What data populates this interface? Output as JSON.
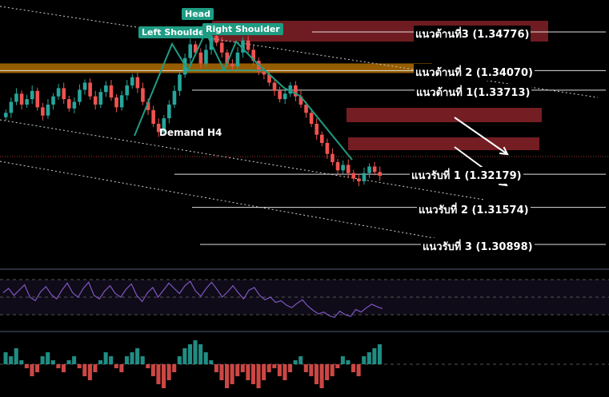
{
  "chart_data": {
    "type": "candlestick",
    "pattern": {
      "left_shoulder": "Left Shoulder",
      "head": "Head",
      "right_shoulder": "Right Shoulder",
      "demand_zone": "Demand H4"
    },
    "resistance": [
      {
        "label": "แนวต้านที่3 (1.34776)",
        "price": 1.34776
      },
      {
        "label": "แนวต้านที่ 2 (1.34070)",
        "price": 1.3407
      },
      {
        "label": "แนวต้านที่ 1(1.33713)",
        "price": 1.33713
      }
    ],
    "support": [
      {
        "label": "แนวรับที่ 1 (1.32179)",
        "price": 1.32179
      },
      {
        "label": "แนวรับที่ 2 (1.31574)",
        "price": 1.31574
      },
      {
        "label": "แนวรับที่ 3 (1.30898)",
        "price": 1.30898
      }
    ],
    "price_range": [
      1.306,
      1.352
    ],
    "closes": [
      1.333,
      1.335,
      1.3365,
      1.3345,
      1.3355,
      1.337,
      1.334,
      1.3325,
      1.3345,
      1.336,
      1.3375,
      1.3355,
      1.3338,
      1.335,
      1.3372,
      1.3385,
      1.336,
      1.3345,
      1.3368,
      1.338,
      1.3358,
      1.334,
      1.3362,
      1.338,
      1.3395,
      1.3375,
      1.335,
      1.3335,
      1.331,
      1.3295,
      1.332,
      1.3345,
      1.337,
      1.34,
      1.343,
      1.3455,
      1.344,
      1.342,
      1.3445,
      1.347,
      1.3458,
      1.344,
      1.342,
      1.3415,
      1.344,
      1.3462,
      1.3445,
      1.3425,
      1.3405,
      1.34,
      1.3385,
      1.337,
      1.3355,
      1.3365,
      1.338,
      1.336,
      1.3345,
      1.333,
      1.331,
      1.329,
      1.3275,
      1.3255,
      1.324,
      1.3225,
      1.3235,
      1.322,
      1.321,
      1.3205,
      1.322,
      1.3232,
      1.3222,
      1.3215
    ],
    "rsi": [
      55,
      60,
      52,
      58,
      64,
      50,
      46,
      56,
      62,
      53,
      48,
      58,
      66,
      55,
      50,
      60,
      67,
      52,
      48,
      57,
      63,
      54,
      50,
      59,
      65,
      52,
      45,
      55,
      61,
      50,
      58,
      66,
      60,
      54,
      63,
      68,
      57,
      51,
      60,
      67,
      59,
      50,
      56,
      63,
      55,
      48,
      58,
      61,
      52,
      47,
      50,
      44,
      46,
      41,
      38,
      43,
      47,
      40,
      35,
      31,
      33,
      29,
      27,
      34,
      30,
      28,
      36,
      33,
      38,
      42,
      39,
      37
    ],
    "macd": [
      3,
      2,
      4,
      1,
      -1,
      -3,
      -2,
      2,
      3,
      1,
      -1,
      -2,
      1,
      2,
      -1,
      -3,
      -4,
      -2,
      1,
      3,
      2,
      -1,
      -2,
      2,
      3,
      4,
      2,
      -1,
      -3,
      -5,
      -6,
      -4,
      -2,
      2,
      4,
      5,
      6,
      5,
      3,
      1,
      -2,
      -4,
      -6,
      -5,
      -3,
      -2,
      -4,
      -5,
      -6,
      -4,
      -2,
      -1,
      -3,
      -4,
      -2,
      1,
      2,
      -2,
      -3,
      -5,
      -6,
      -4,
      -3,
      -1,
      2,
      1,
      -2,
      -3,
      2,
      3,
      4,
      5
    ]
  },
  "colors": {
    "up": "#26a69a",
    "down": "#ef5350",
    "rsi": "#7e57c2",
    "resistance_zone": "#7a1f25",
    "orange_zone": "#b06d00",
    "pattern": "#1e9c83"
  }
}
